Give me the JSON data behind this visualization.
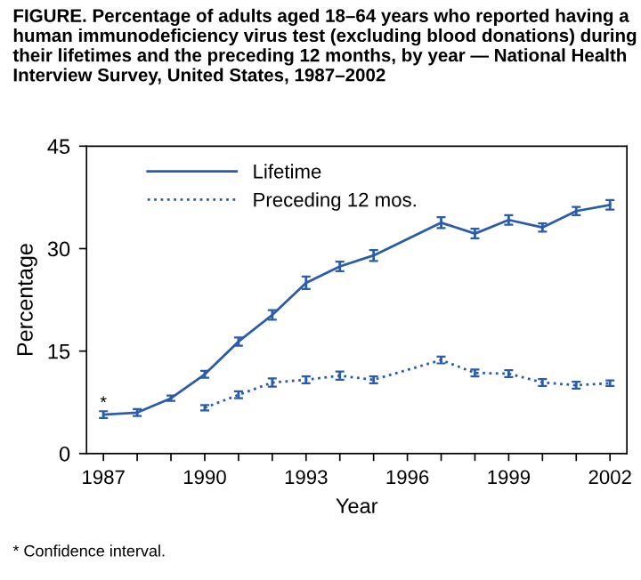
{
  "chart_data": {
    "type": "line",
    "title": "FIGURE. Percentage of adults aged 18–64 years who reported having a human immunodeficiency virus test (excluding blood donations) during their lifetimes and the preceding 12 months, by year — National Health Interview Survey, United States, 1987–2002",
    "xlabel": "Year",
    "ylabel": "Percentage",
    "series": [
      {
        "name": "Lifetime",
        "color": "#2a5caa",
        "line_style": "solid",
        "x": [
          1987,
          1988,
          1989,
          1990,
          1991,
          1992,
          1993,
          1994,
          1995,
          1997,
          1998,
          1999,
          2000,
          2001,
          2002
        ],
        "values": [
          5.7,
          6.0,
          8.1,
          11.6,
          16.4,
          20.3,
          25.0,
          27.4,
          29.0,
          33.8,
          32.2,
          34.2,
          33.1,
          35.5,
          36.4
        ],
        "errors": [
          0.5,
          0.5,
          0.4,
          0.5,
          0.6,
          0.7,
          0.9,
          0.7,
          0.8,
          0.8,
          0.7,
          0.7,
          0.6,
          0.6,
          0.7
        ]
      },
      {
        "name": "Preceding 12 mos.",
        "color": "#2a5caa",
        "line_style": "dotted",
        "x": [
          1990,
          1991,
          1992,
          1993,
          1994,
          1995,
          1997,
          1998,
          1999,
          2000,
          2001,
          2002
        ],
        "values": [
          6.7,
          8.6,
          10.4,
          10.8,
          11.4,
          10.8,
          13.7,
          11.8,
          11.7,
          10.4,
          10.0,
          10.3
        ],
        "errors": [
          0.4,
          0.5,
          0.6,
          0.5,
          0.6,
          0.5,
          0.5,
          0.5,
          0.5,
          0.5,
          0.5,
          0.4
        ]
      }
    ],
    "xlim": [
      1986.5,
      2002.5
    ],
    "ylim": [
      0,
      45
    ],
    "yticks": [
      0,
      15,
      30,
      45
    ],
    "xticks": [
      1987,
      {
        "value": 1988,
        "label": null
      },
      {
        "value": 1989,
        "label": null
      },
      1990,
      {
        "value": 1991,
        "label": null
      },
      {
        "value": 1992,
        "label": null
      },
      1993,
      {
        "value": 1994,
        "label": null
      },
      {
        "value": 1995,
        "label": null
      },
      1996,
      {
        "value": 1997,
        "label": null
      },
      {
        "value": 1998,
        "label": null
      },
      1999,
      {
        "value": 2000,
        "label": null
      },
      {
        "value": 2001,
        "label": null
      },
      2002
    ],
    "grid": false,
    "legend": "top left",
    "marker": "none",
    "annotations": [
      {
        "text": "*",
        "x": 1987,
        "y": 7.3
      },
      "* Confidence interval."
    ]
  }
}
